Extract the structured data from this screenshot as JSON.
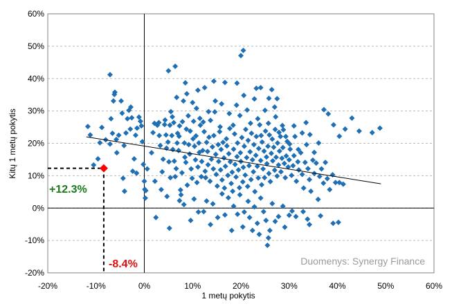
{
  "chart_data": {
    "type": "scatter",
    "xlabel": "1 metų pokytis",
    "ylabel": "Kitų 1 metų pokytis",
    "xlim": [
      -0.2,
      0.6
    ],
    "ylim": [
      -0.2,
      0.6
    ],
    "x_ticks": [
      "-20%",
      "-10%",
      "0%",
      "10%",
      "20%",
      "30%",
      "40%",
      "50%",
      "60%"
    ],
    "y_ticks": [
      "-20%",
      "-10%",
      "0%",
      "10%",
      "20%",
      "30%",
      "40%",
      "50%",
      "60%"
    ],
    "grid": "horizontal dashed",
    "source": "Duomenys: Synergy Finance",
    "point_color": "#1f6fb4",
    "highlight_color": "#ff0000",
    "trendline": {
      "x": [
        -0.12,
        0.49
      ],
      "y": [
        0.22,
        0.075
      ]
    },
    "highlight": {
      "x": -0.084,
      "y": 0.123,
      "x_label": "-8.4%",
      "y_label": "+12.3%",
      "x_label_color": "#e01010",
      "y_label_color": "#1a7a1a"
    },
    "points": [
      [
        -0.117,
        0.252
      ],
      [
        -0.112,
        0.226
      ],
      [
        -0.105,
        0.133
      ],
      [
        -0.096,
        0.152
      ],
      [
        -0.092,
        0.202
      ],
      [
        -0.088,
        0.249
      ],
      [
        -0.08,
        0.211
      ],
      [
        -0.071,
        0.198
      ],
      [
        -0.069,
        0.276
      ],
      [
        -0.066,
        0.231
      ],
      [
        -0.062,
        0.351
      ],
      [
        -0.061,
        0.358
      ],
      [
        -0.058,
        0.212
      ],
      [
        -0.057,
        0.171
      ],
      [
        -0.053,
        0.225
      ],
      [
        -0.048,
        0.331
      ],
      [
        -0.046,
        0.293
      ],
      [
        -0.044,
        0.092
      ],
      [
        -0.042,
        0.193
      ],
      [
        -0.038,
        0.232
      ],
      [
        -0.035,
        0.276
      ],
      [
        -0.032,
        0.302
      ],
      [
        -0.029,
        0.244
      ],
      [
        -0.026,
        0.279
      ],
      [
        -0.024,
        0.114
      ],
      [
        -0.021,
        0.152
      ],
      [
        -0.018,
        0.225
      ],
      [
        -0.015,
        0.247
      ],
      [
        -0.011,
        0.281
      ],
      [
        -0.008,
        0.268
      ],
      [
        -0.006,
        0.254
      ],
      [
        -0.004,
        0.205
      ],
      [
        -0.002,
        0.135
      ],
      [
        0.0,
        0.083
      ],
      [
        0.001,
        0.058
      ],
      [
        0.002,
        0.031
      ],
      [
        0.003,
        0.054
      ],
      [
        0.006,
        0.121
      ],
      [
        -0.071,
        0.412
      ],
      [
        -0.064,
        0.331
      ],
      [
        -0.028,
        0.312
      ],
      [
        -0.041,
        0.052
      ],
      [
        -0.016,
        0.108
      ],
      [
        0.015,
        0.171
      ],
      [
        0.018,
        0.233
      ],
      [
        0.021,
        0.262
      ],
      [
        0.022,
        0.083
      ],
      [
        0.024,
        -0.029
      ],
      [
        0.027,
        0.256
      ],
      [
        0.031,
        0.224
      ],
      [
        0.033,
        0.193
      ],
      [
        0.035,
        0.057
      ],
      [
        0.037,
        0.112
      ],
      [
        0.039,
        0.151
      ],
      [
        0.042,
        0.258
      ],
      [
        0.043,
        0.272
      ],
      [
        0.046,
        0.185
      ],
      [
        0.047,
        0.036
      ],
      [
        0.049,
        0.204
      ],
      [
        0.051,
        0.143
      ],
      [
        0.053,
        0.256
      ],
      [
        0.054,
        0.094
      ],
      [
        0.055,
        0.298
      ],
      [
        0.057,
        0.224
      ],
      [
        0.059,
        0.181
      ],
      [
        0.061,
        0.264
      ],
      [
        0.062,
        0.145
      ],
      [
        0.064,
        0.097
      ],
      [
        0.066,
        0.122
      ],
      [
        0.068,
        0.201
      ],
      [
        0.069,
        0.231
      ],
      [
        0.071,
        0.178
      ],
      [
        0.073,
        0.254
      ],
      [
        0.075,
        0.056
      ],
      [
        0.076,
        0.041
      ],
      [
        0.078,
        0.109
      ],
      [
        0.079,
        0.267
      ],
      [
        0.081,
        0.331
      ],
      [
        0.083,
        0.201
      ],
      [
        0.084,
        0.157
      ],
      [
        0.086,
        0.141
      ],
      [
        0.087,
        0.244
      ],
      [
        0.089,
        0.071
      ],
      [
        0.091,
        0.285
      ],
      [
        0.092,
        0.196
      ],
      [
        0.094,
        0.167
      ],
      [
        0.095,
        0.238
      ],
      [
        0.097,
        0.121
      ],
      [
        0.099,
        0.092
      ],
      [
        0.101,
        0.214
      ],
      [
        0.102,
        0.268
      ],
      [
        0.104,
        0.191
      ],
      [
        0.106,
        0.149
      ],
      [
        0.107,
        0.223
      ],
      [
        0.109,
        0.079
      ],
      [
        0.111,
        0.127
      ],
      [
        0.113,
        0.201
      ],
      [
        0.114,
        0.172
      ],
      [
        0.116,
        0.256
      ],
      [
        0.118,
        0.097
      ],
      [
        0.119,
        0.144
      ],
      [
        0.121,
        0.178
      ],
      [
        0.122,
        0.266
      ],
      [
        0.124,
        0.236
      ],
      [
        0.126,
        0.114
      ],
      [
        0.127,
        0.094
      ],
      [
        0.129,
        0.203
      ],
      [
        0.131,
        0.175
      ],
      [
        0.132,
        0.134
      ],
      [
        0.134,
        0.219
      ],
      [
        0.136,
        0.083
      ],
      [
        0.137,
        0.271
      ],
      [
        0.139,
        0.151
      ],
      [
        0.141,
        0.189
      ],
      [
        0.143,
        0.121
      ],
      [
        0.144,
        0.224
      ],
      [
        0.146,
        0.297
      ],
      [
        0.148,
        0.166
      ],
      [
        0.149,
        0.104
      ],
      [
        0.151,
        0.068
      ],
      [
        0.153,
        0.196
      ],
      [
        0.154,
        0.144
      ],
      [
        0.156,
        0.236
      ],
      [
        0.158,
        0.118
      ],
      [
        0.159,
        0.181
      ],
      [
        0.161,
        0.087
      ],
      [
        0.163,
        0.203
      ],
      [
        0.165,
        0.155
      ],
      [
        0.166,
        0.062
      ],
      [
        0.168,
        0.129
      ],
      [
        0.17,
        0.214
      ],
      [
        0.171,
        0.192
      ],
      [
        0.173,
        0.101
      ],
      [
        0.175,
        0.168
      ],
      [
        0.177,
        0.246
      ],
      [
        0.178,
        0.143
      ],
      [
        0.18,
        0.076
      ],
      [
        0.182,
        0.111
      ],
      [
        0.183,
        0.052
      ],
      [
        0.185,
        0.182
      ],
      [
        0.187,
        0.229
      ],
      [
        0.188,
        0.135
      ],
      [
        0.19,
        0.096
      ],
      [
        0.192,
        0.159
      ],
      [
        0.193,
        0.201
      ],
      [
        0.195,
        0.118
      ],
      [
        0.197,
        0.063
      ],
      [
        0.199,
        0.171
      ],
      [
        0.2,
        0.144
      ],
      [
        0.202,
        0.218
      ],
      [
        0.204,
        0.081
      ],
      [
        0.205,
        0.126
      ],
      [
        0.207,
        0.191
      ],
      [
        0.209,
        0.102
      ],
      [
        0.21,
        0.243
      ],
      [
        0.212,
        0.156
      ],
      [
        0.214,
        0.067
      ],
      [
        0.215,
        0.209
      ],
      [
        0.217,
        0.131
      ],
      [
        0.219,
        0.174
      ],
      [
        0.221,
        0.088
      ],
      [
        0.222,
        0.231
      ],
      [
        0.224,
        0.149
      ],
      [
        0.226,
        0.112
      ],
      [
        0.227,
        0.196
      ],
      [
        0.229,
        0.051
      ],
      [
        0.231,
        0.163
      ],
      [
        0.232,
        0.221
      ],
      [
        0.234,
        0.129
      ],
      [
        0.236,
        0.093
      ],
      [
        0.237,
        0.184
      ],
      [
        0.239,
        0.257
      ],
      [
        0.241,
        0.147
      ],
      [
        0.243,
        0.072
      ],
      [
        0.244,
        0.204
      ],
      [
        0.246,
        0.121
      ],
      [
        0.248,
        0.176
      ],
      [
        0.249,
        0.094
      ],
      [
        0.251,
        0.238
      ],
      [
        0.253,
        0.158
      ],
      [
        0.254,
        0.137
      ],
      [
        0.256,
        0.191
      ],
      [
        0.258,
        0.107
      ],
      [
        0.259,
        0.226
      ],
      [
        0.261,
        0.082
      ],
      [
        0.263,
        0.169
      ],
      [
        0.265,
        0.213
      ],
      [
        0.266,
        0.146
      ],
      [
        0.268,
        0.188
      ],
      [
        0.27,
        0.117
      ],
      [
        0.271,
        0.243
      ],
      [
        0.273,
        0.157
      ],
      [
        0.275,
        0.099
      ],
      [
        0.276,
        0.201
      ],
      [
        0.278,
        0.133
      ],
      [
        0.28,
        0.176
      ],
      [
        0.282,
        0.221
      ],
      [
        0.283,
        0.112
      ],
      [
        0.285,
        0.154
      ],
      [
        0.287,
        0.187
      ],
      [
        0.288,
        0.242
      ],
      [
        0.29,
        0.138
      ],
      [
        0.292,
        0.094
      ],
      [
        0.294,
        0.161
      ],
      [
        0.296,
        0.206
      ],
      [
        0.298,
        0.127
      ],
      [
        0.3,
        0.149
      ],
      [
        0.302,
        0.182
      ],
      [
        0.305,
        0.101
      ],
      [
        0.308,
        0.131
      ],
      [
        0.31,
        0.162
      ],
      [
        0.312,
        0.221
      ],
      [
        0.315,
        0.083
      ],
      [
        0.318,
        0.143
      ],
      [
        0.32,
        0.118
      ],
      [
        0.324,
        0.171
      ],
      [
        0.327,
        0.104
      ],
      [
        0.33,
        0.062
      ],
      [
        0.333,
        0.141
      ],
      [
        0.336,
        0.196
      ],
      [
        0.339,
        0.122
      ],
      [
        0.342,
        0.088
      ],
      [
        0.345,
        0.052
      ],
      [
        0.349,
        0.148
      ],
      [
        0.352,
        0.107
      ],
      [
        0.356,
        0.139
      ],
      [
        0.36,
        0.027
      ],
      [
        0.363,
        0.098
      ],
      [
        0.367,
        0.121
      ],
      [
        0.371,
        0.077
      ],
      [
        0.375,
        0.141
      ],
      [
        0.379,
        0.091
      ],
      [
        0.384,
        0.057
      ],
      [
        0.39,
        0.103
      ],
      [
        0.396,
        0.079
      ],
      [
        0.404,
        0.079
      ],
      [
        0.412,
        0.074
      ],
      [
        0.03,
        0.264
      ],
      [
        0.045,
        0.226
      ],
      [
        0.058,
        0.282
      ],
      [
        0.067,
        0.342
      ],
      [
        0.072,
        0.222
      ],
      [
        0.088,
        0.353
      ],
      [
        0.1,
        0.326
      ],
      [
        0.108,
        0.308
      ],
      [
        0.115,
        0.277
      ],
      [
        0.125,
        0.372
      ],
      [
        0.133,
        0.298
      ],
      [
        0.147,
        0.331
      ],
      [
        0.157,
        0.251
      ],
      [
        0.167,
        0.388
      ],
      [
        0.176,
        0.292
      ],
      [
        0.184,
        0.256
      ],
      [
        0.191,
        0.318
      ],
      [
        0.198,
        0.286
      ],
      [
        0.206,
        0.348
      ],
      [
        0.213,
        0.303
      ],
      [
        0.22,
        0.262
      ],
      [
        0.228,
        0.337
      ],
      [
        0.235,
        0.276
      ],
      [
        0.242,
        0.224
      ],
      [
        0.25,
        0.302
      ],
      [
        0.257,
        0.262
      ],
      [
        0.264,
        0.366
      ],
      [
        0.272,
        0.282
      ],
      [
        0.279,
        0.234
      ],
      [
        0.286,
        0.255
      ],
      [
        0.293,
        0.221
      ],
      [
        0.301,
        0.198
      ],
      [
        0.31,
        0.254
      ],
      [
        0.319,
        0.181
      ],
      [
        0.327,
        0.232
      ],
      [
        0.335,
        0.264
      ],
      [
        0.343,
        0.227
      ],
      [
        0.352,
        0.172
      ],
      [
        0.361,
        0.201
      ],
      [
        0.372,
        0.304
      ],
      [
        0.381,
        0.291
      ],
      [
        0.392,
        0.257
      ],
      [
        0.404,
        0.222
      ],
      [
        0.416,
        0.244
      ],
      [
        0.43,
        0.278
      ],
      [
        0.445,
        0.238
      ],
      [
        0.472,
        0.233
      ],
      [
        0.488,
        0.247
      ],
      [
        0.05,
        0.424
      ],
      [
        0.064,
        0.438
      ],
      [
        0.085,
        0.387
      ],
      [
        0.111,
        0.364
      ],
      [
        0.144,
        0.392
      ],
      [
        0.16,
        0.322
      ],
      [
        0.192,
        0.386
      ],
      [
        0.2,
        0.471
      ],
      [
        0.205,
        0.487
      ],
      [
        0.241,
        0.372
      ],
      [
        0.258,
        0.339
      ],
      [
        0.27,
        0.312
      ],
      [
        0.275,
        0.338
      ],
      [
        0.232,
        0.37
      ],
      [
        0.052,
        -0.062
      ],
      [
        0.073,
        0.023
      ],
      [
        0.082,
        0.011
      ],
      [
        0.096,
        -0.038
      ],
      [
        0.103,
        0.028
      ],
      [
        0.112,
        -0.012
      ],
      [
        0.123,
        -0.011
      ],
      [
        0.129,
        0.022
      ],
      [
        0.137,
        -0.051
      ],
      [
        0.142,
        0.013
      ],
      [
        0.152,
        -0.029
      ],
      [
        0.161,
        0.044
      ],
      [
        0.167,
        -0.021
      ],
      [
        0.174,
        0.032
      ],
      [
        0.181,
        -0.069
      ],
      [
        0.185,
        0.006
      ],
      [
        0.193,
        -0.019
      ],
      [
        0.198,
        0.041
      ],
      [
        0.204,
        -0.058
      ],
      [
        0.207,
        -0.012
      ],
      [
        0.215,
        0.021
      ],
      [
        0.218,
        -0.029
      ],
      [
        0.224,
        -0.069
      ],
      [
        0.228,
        0.004
      ],
      [
        0.234,
        -0.047
      ],
      [
        0.238,
        -0.081
      ],
      [
        0.241,
        0.031
      ],
      [
        0.247,
        -0.011
      ],
      [
        0.252,
        -0.038
      ],
      [
        0.255,
        -0.115
      ],
      [
        0.257,
        -0.092
      ],
      [
        0.26,
        -0.069
      ],
      [
        0.265,
        0.014
      ],
      [
        0.271,
        -0.041
      ],
      [
        0.278,
        -0.026
      ],
      [
        0.287,
        0.006
      ],
      [
        0.291,
        -0.059
      ],
      [
        0.3,
        -0.022
      ],
      [
        0.306,
        -0.009
      ],
      [
        0.314,
        -0.026
      ],
      [
        0.329,
        -0.011
      ],
      [
        0.338,
        -0.034
      ],
      [
        0.342,
        -0.051
      ],
      [
        0.365,
        -0.024
      ],
      [
        0.391,
        -0.047
      ],
      [
        0.402,
        -0.044
      ]
    ]
  }
}
